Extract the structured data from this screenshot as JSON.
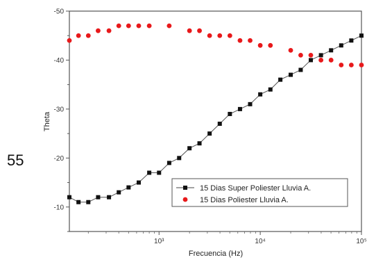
{
  "side_label": "55",
  "chart_data": {
    "type": "scatter",
    "xlabel": "Frecuencia (Hz)",
    "ylabel": "Theta",
    "x_scale": "log",
    "xlim": [
      130,
      100000
    ],
    "ylim": [
      -5,
      -50
    ],
    "y_ticks": [
      {
        "value": -10,
        "label": "-10"
      },
      {
        "value": -20,
        "label": "-20"
      },
      {
        "value": -30,
        "label": "-30"
      },
      {
        "value": -40,
        "label": "-40"
      },
      {
        "value": -50,
        "label": "-50"
      }
    ],
    "x_ticks": [
      {
        "value": 1000,
        "label": "10³"
      },
      {
        "value": 10000,
        "label": "10⁴"
      },
      {
        "value": 100000,
        "label": "10⁵"
      }
    ],
    "legend_position": "lower-right",
    "series": [
      {
        "name": "15 Dias Super Poliester Lluvia A.",
        "marker": "square",
        "color": "#111111",
        "line": true,
        "x": [
          130,
          160,
          200,
          250,
          320,
          400,
          500,
          630,
          800,
          1000,
          1260,
          1580,
          2000,
          2510,
          3160,
          3980,
          5010,
          6310,
          7940,
          10000,
          12600,
          15800,
          20000,
          25100,
          31600,
          39800,
          50100,
          63100,
          79400,
          100000
        ],
        "y": [
          -12,
          -11,
          -11,
          -12,
          -12,
          -13,
          -14,
          -15,
          -17,
          -17,
          -19,
          -20,
          -22,
          -23,
          -25,
          -27,
          -29,
          -30,
          -31,
          -33,
          -34,
          -36,
          -37,
          -38,
          -40,
          -41,
          -42,
          -43,
          -44,
          -45
        ]
      },
      {
        "name": "15 Dias Poliester Lluvia A.",
        "marker": "circle",
        "color": "#e8191b",
        "line": false,
        "x": [
          130,
          160,
          200,
          250,
          320,
          400,
          500,
          630,
          800,
          1260,
          2000,
          2510,
          3160,
          3980,
          5010,
          6310,
          7940,
          10000,
          12600,
          20000,
          25100,
          31600,
          39800,
          50100,
          63100,
          79400,
          100000
        ],
        "y": [
          -44,
          -45,
          -45,
          -46,
          -46,
          -47,
          -47,
          -47,
          -47,
          -47,
          -46,
          -46,
          -45,
          -45,
          -45,
          -44,
          -44,
          -43,
          -43,
          -42,
          -41,
          -41,
          -40,
          -40,
          -39,
          -39,
          -39
        ]
      }
    ]
  }
}
